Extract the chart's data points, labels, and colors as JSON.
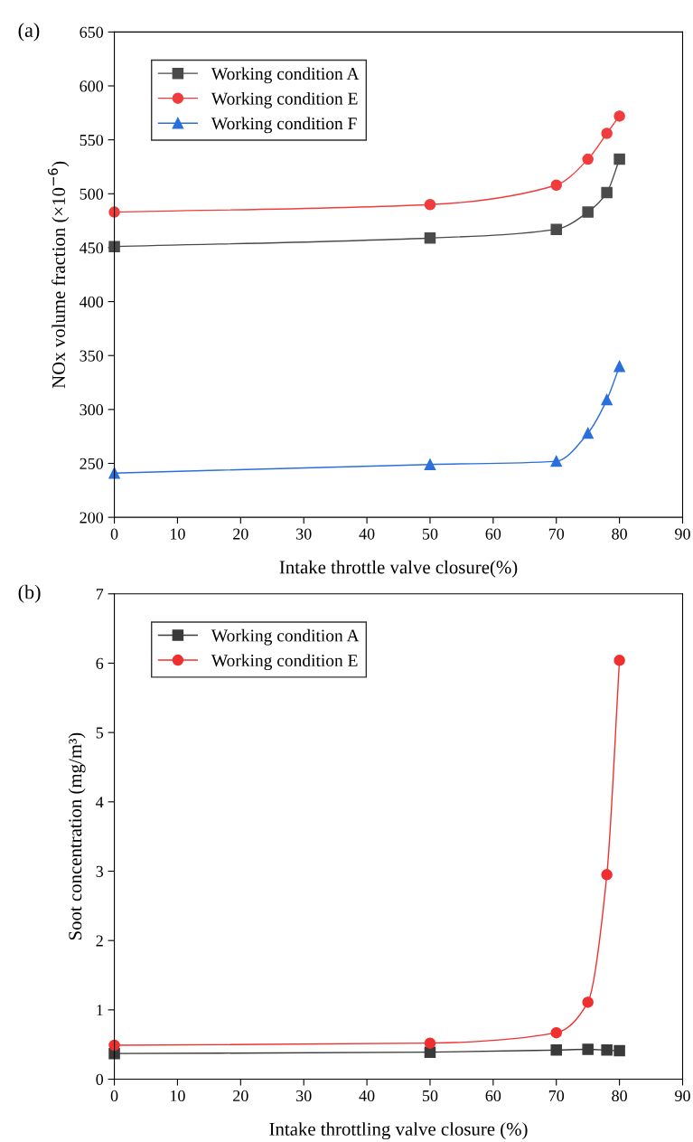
{
  "chart_data": [
    {
      "type": "line",
      "annotations": [
        "(a)"
      ],
      "xlabel": "Intake throttle valve closure(%)",
      "ylabel": "NOx volume fraction (×10$^{−6}$)",
      "x": [
        0,
        50,
        70,
        75,
        78,
        80
      ],
      "xlim": [
        0,
        90
      ],
      "xticks": [
        0,
        10,
        20,
        30,
        40,
        50,
        60,
        70,
        80,
        90
      ],
      "ylim": [
        200,
        650
      ],
      "yticks": [
        200,
        250,
        300,
        350,
        400,
        450,
        500,
        550,
        600,
        650
      ],
      "grid": false,
      "legend": "top left",
      "series": [
        {
          "name": "Working condition A",
          "color": "#4a4a4a",
          "marker": "square",
          "values": [
            451,
            459,
            467,
            483,
            501,
            532
          ]
        },
        {
          "name": "Working condition E",
          "color": "#f03c3c",
          "marker": "circle",
          "values": [
            483,
            490,
            508,
            532,
            556,
            572
          ]
        },
        {
          "name": "Working condition F",
          "color": "#2a6fdb",
          "marker": "triangle",
          "values": [
            241,
            249,
            252,
            278,
            309,
            340
          ]
        }
      ]
    },
    {
      "type": "line",
      "annotations": [
        "(b)"
      ],
      "xlabel": "Intake throttling valve closure (%)",
      "ylabel": "Soot concentration (mg/m³)",
      "x": [
        0,
        50,
        70,
        75,
        78,
        80
      ],
      "xlim": [
        0,
        90
      ],
      "xticks": [
        0,
        10,
        20,
        30,
        40,
        50,
        60,
        70,
        80,
        90
      ],
      "ylim": [
        0,
        7
      ],
      "yticks": [
        0,
        1,
        2,
        3,
        4,
        5,
        6,
        7
      ],
      "grid": false,
      "legend": "top left",
      "series": [
        {
          "name": "Working condition A",
          "color": "#3a3a3a",
          "marker": "square",
          "values": [
            0.37,
            0.39,
            0.42,
            0.43,
            0.42,
            0.41
          ]
        },
        {
          "name": "Working condition E",
          "color": "#f03030",
          "marker": "circle",
          "values": [
            0.49,
            0.52,
            0.67,
            1.11,
            2.95,
            6.04
          ]
        }
      ]
    }
  ]
}
